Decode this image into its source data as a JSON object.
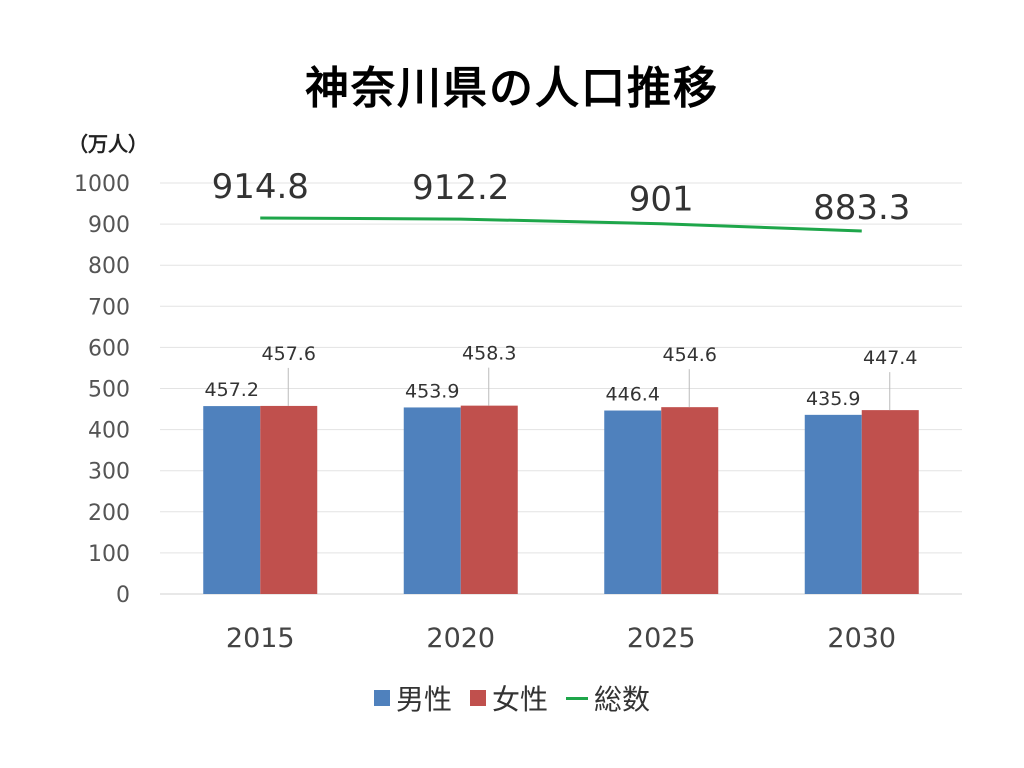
{
  "chart_data": {
    "type": "bar",
    "title": "神奈川県の人口推移",
    "ylabel": "（万人）",
    "ylim": [
      0,
      1000
    ],
    "yticks": [
      0,
      100,
      200,
      300,
      400,
      500,
      600,
      700,
      800,
      900,
      1000
    ],
    "categories": [
      "2015",
      "2020",
      "2025",
      "2030"
    ],
    "series": [
      {
        "name": "男性",
        "type": "bar",
        "color": "#4F81BD",
        "values": [
          457.2,
          453.9,
          446.4,
          435.9
        ],
        "labels": [
          "457.2",
          "453.9",
          "446.4",
          "435.9"
        ]
      },
      {
        "name": "女性",
        "type": "bar",
        "color": "#C0504D",
        "values": [
          457.6,
          458.3,
          454.6,
          447.4
        ],
        "labels": [
          "457.6",
          "458.3",
          "454.6",
          "447.4"
        ]
      },
      {
        "name": "総数",
        "type": "line",
        "color": "#1EA64A",
        "values": [
          914.8,
          912.2,
          901,
          883.3
        ],
        "labels": [
          "914.8",
          "912.2",
          "901",
          "883.3"
        ]
      }
    ],
    "grid": true,
    "legend_position": "bottom"
  }
}
